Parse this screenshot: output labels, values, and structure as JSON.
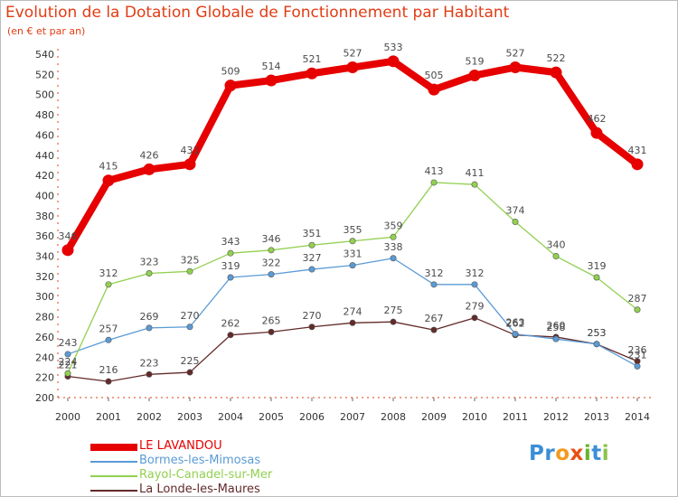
{
  "header": {
    "title": "Evolution de la Dotation Globale de Fonctionnement par Habitant",
    "subtitle": "(en € et par an)"
  },
  "logo": {
    "letters": [
      "P",
      "r",
      "o",
      "x",
      "i",
      "t",
      "i"
    ],
    "colors": [
      "#3b8ed6",
      "#3b8ed6",
      "#f39a1e",
      "#e84f12",
      "#66b52f",
      "#3b8ed6",
      "#8bc34a"
    ]
  },
  "chart_data": {
    "type": "line",
    "title": "Evolution de la Dotation Globale de Fonctionnement par Habitant",
    "subtitle": "(en € et par an)",
    "xlabel": "",
    "ylabel": "",
    "x": [
      "2000",
      "2001",
      "2002",
      "2003",
      "2004",
      "2005",
      "2006",
      "2007",
      "2008",
      "2009",
      "2010",
      "2011",
      "2012",
      "2013",
      "2014"
    ],
    "ylim": [
      200,
      540
    ],
    "yticks": [
      200,
      220,
      240,
      260,
      280,
      300,
      320,
      340,
      360,
      380,
      400,
      420,
      440,
      460,
      480,
      500,
      520,
      540
    ],
    "grid": false,
    "legend_position": "bottom-left",
    "series": [
      {
        "name": "LE LAVANDOU",
        "color": "#e60000",
        "values": [
          346,
          415,
          426,
          431,
          509,
          514,
          521,
          527,
          533,
          505,
          519,
          527,
          522,
          462,
          431
        ]
      },
      {
        "name": "Bormes-les-Mimosas",
        "color": "#5b9bd5",
        "values": [
          243,
          257,
          269,
          270,
          319,
          322,
          327,
          331,
          338,
          312,
          312,
          263,
          258,
          253,
          231
        ]
      },
      {
        "name": "Rayol-Canadel-sur-Mer",
        "color": "#92d050",
        "values": [
          224,
          312,
          323,
          325,
          343,
          346,
          351,
          355,
          359,
          413,
          411,
          374,
          340,
          319,
          287
        ]
      },
      {
        "name": "La Londe-les-Maures",
        "color": "#632a2a",
        "values": [
          221,
          216,
          223,
          225,
          262,
          265,
          270,
          274,
          275,
          267,
          279,
          262,
          260,
          253,
          236
        ]
      }
    ]
  }
}
